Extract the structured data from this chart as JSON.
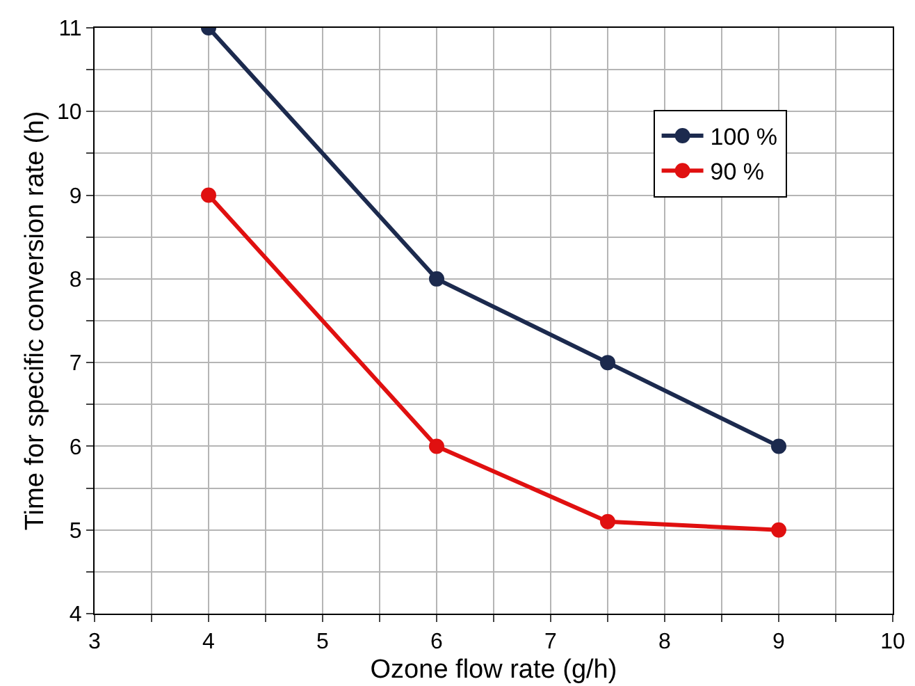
{
  "chart_data": {
    "type": "line",
    "xlabel": "Ozone flow rate (g/h)",
    "ylabel": "Time for specific conversion rate (h)",
    "xlim": [
      3,
      10
    ],
    "ylim": [
      4,
      11
    ],
    "xticks": [
      3,
      {
        "value": 3.5,
        "label": null
      },
      4,
      {
        "value": 4.5,
        "label": null
      },
      5,
      {
        "value": 5.5,
        "label": null
      },
      6,
      {
        "value": 6.5,
        "label": null
      },
      7,
      {
        "value": 7.5,
        "label": null
      },
      8,
      {
        "value": 8.5,
        "label": null
      },
      9,
      {
        "value": 9.5,
        "label": null
      },
      10
    ],
    "yticks": [
      4,
      {
        "value": 4.5,
        "label": null
      },
      5,
      {
        "value": 5.5,
        "label": null
      },
      6,
      {
        "value": 6.5,
        "label": null
      },
      7,
      {
        "value": 7.5,
        "label": null
      },
      8,
      {
        "value": 8.5,
        "label": null
      },
      9,
      {
        "value": 9.5,
        "label": null
      },
      10,
      {
        "value": 10.5,
        "label": null
      },
      11
    ],
    "x": [
      4,
      6,
      7.5,
      9
    ],
    "series": [
      {
        "name": "100 %",
        "color": "#1c2a4e",
        "values": [
          11,
          8,
          7,
          6
        ]
      },
      {
        "name": "90 %",
        "color": "#e01010",
        "values": [
          9,
          6,
          5.1,
          5
        ]
      }
    ],
    "grid": true,
    "legend": "top right",
    "marker": "circle",
    "line_style": "solid"
  }
}
